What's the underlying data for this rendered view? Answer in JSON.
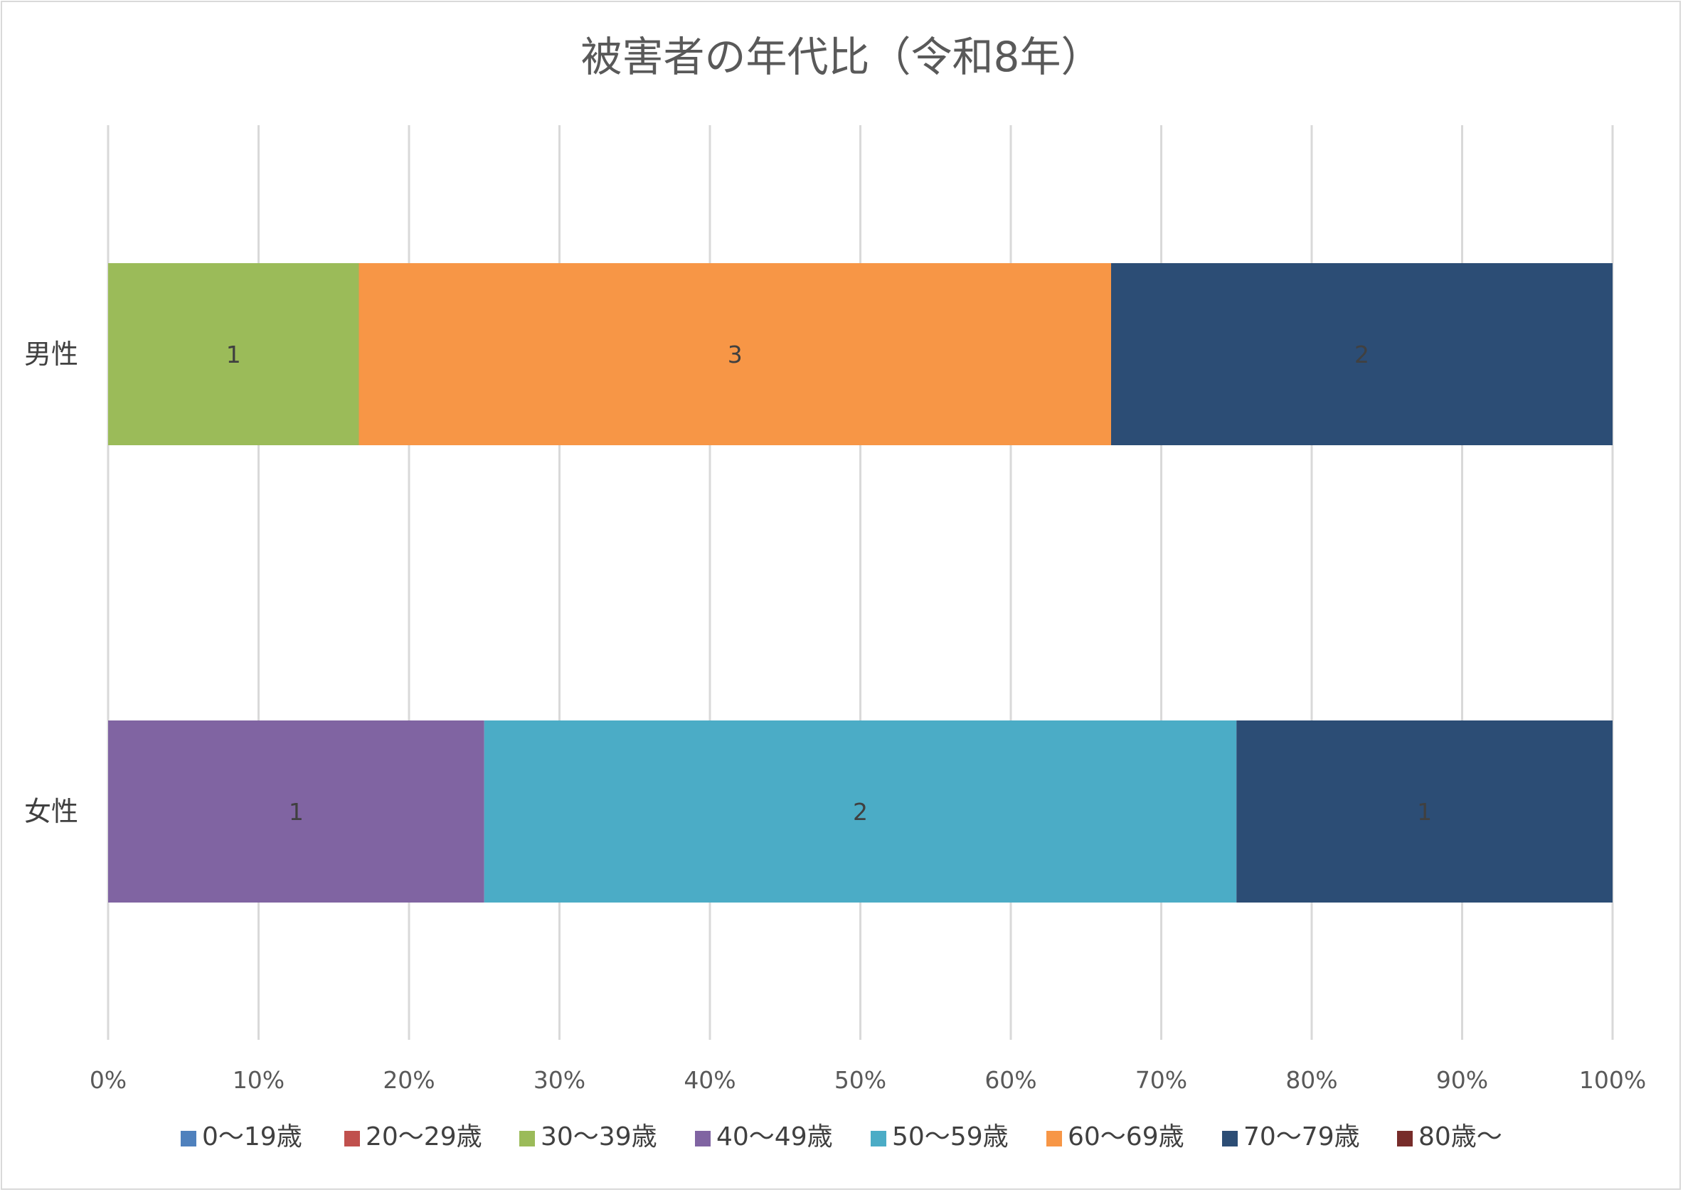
{
  "chart_data": {
    "type": "bar",
    "orientation": "horizontal",
    "stacking": "percent",
    "title": "被害者の年代比（令和8年）",
    "categories": [
      "男性",
      "女性"
    ],
    "series": [
      {
        "name": "0～19歳",
        "color": "#4f81bd",
        "values": [
          0,
          0
        ]
      },
      {
        "name": "20～29歳",
        "color": "#c0504d",
        "values": [
          0,
          0
        ]
      },
      {
        "name": "30～39歳",
        "color": "#9bbb59",
        "values": [
          1,
          0
        ]
      },
      {
        "name": "40～49歳",
        "color": "#8064a2",
        "values": [
          0,
          1
        ]
      },
      {
        "name": "50～59歳",
        "color": "#4bacc6",
        "values": [
          0,
          2
        ]
      },
      {
        "name": "60～69歳",
        "color": "#f79646",
        "values": [
          3,
          0
        ]
      },
      {
        "name": "70～79歳",
        "color": "#2c4d75",
        "values": [
          2,
          1
        ]
      },
      {
        "name": "80歳～",
        "color": "#772c2a",
        "values": [
          0,
          0
        ]
      }
    ],
    "xticks": [
      "0%",
      "10%",
      "20%",
      "30%",
      "40%",
      "50%",
      "60%",
      "70%",
      "80%",
      "90%",
      "100%"
    ],
    "xlim": [
      0,
      100
    ],
    "grid": "vertical",
    "legend": "bottom",
    "data_labels": true
  }
}
